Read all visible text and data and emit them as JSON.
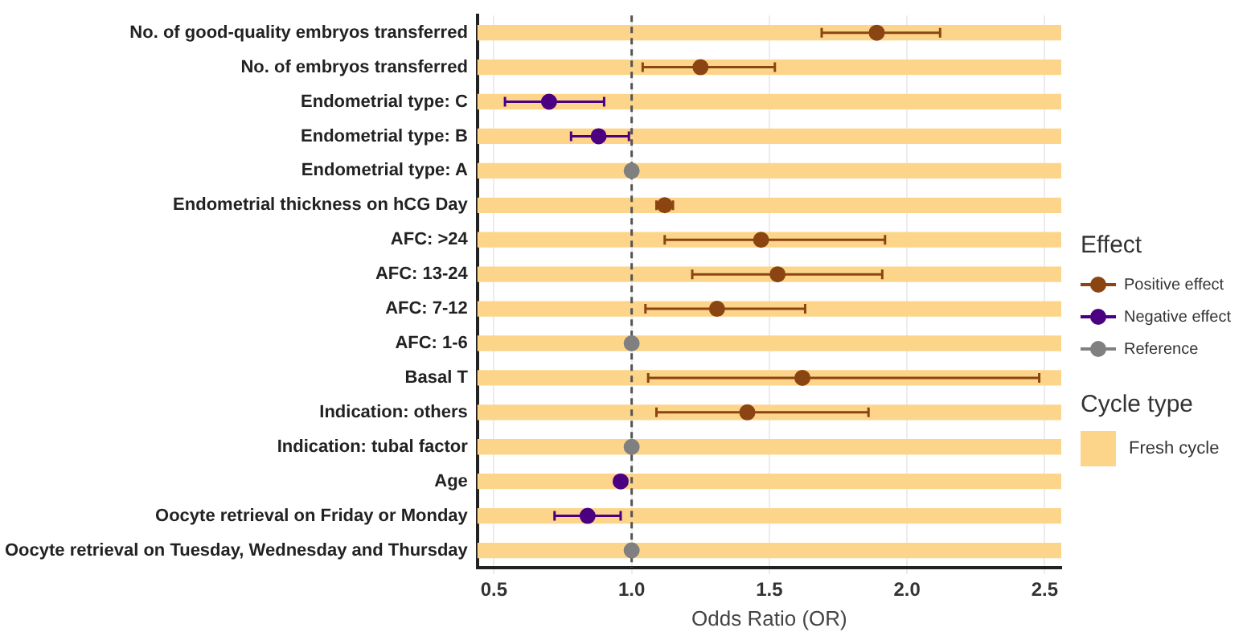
{
  "chart_data": {
    "type": "scatter",
    "orientation": "horizontal",
    "xlabel": "Odds Ratio (OR)",
    "legend": "right",
    "legend_title": "Effect",
    "marker": "circle",
    "grid": "x",
    "categories": [
      "No. of good-quality embryos transferred",
      "No. of embryos transferred",
      "Endometrial type: C",
      "Endometrial type: B",
      "Endometrial type: A",
      "Endometrial thickness on hCG Day",
      "AFC: >24",
      "AFC: 13-24",
      "AFC: 7-12",
      "AFC: 1-6",
      "Basal T",
      "Indication: others",
      "Indication: tubal factor",
      "Age",
      "Oocyte retrieval on Friday or Monday",
      "Oocyte retrieval on Tuesday, Wednesday and Thursday"
    ],
    "xlim": [
      0.44,
      2.56
    ],
    "xticks": [
      0.5,
      {
        "value": 1,
        "label": "1.0"
      },
      1.5,
      {
        "value": 2,
        "label": "2.0"
      },
      2.5
    ],
    "series": [
      {
        "name": "Positive effect",
        "color": "#8b4513",
        "values": [
          1.89,
          1.25,
          null,
          null,
          null,
          1.12,
          1.47,
          1.53,
          1.31,
          null,
          1.62,
          1.42,
          null,
          null,
          null,
          null
        ],
        "errors": [
          [
            1.69,
            2.12
          ],
          [
            1.04,
            1.52
          ],
          null,
          null,
          null,
          [
            1.09,
            1.15
          ],
          [
            1.12,
            1.92
          ],
          [
            1.22,
            1.91
          ],
          [
            1.05,
            1.63
          ],
          null,
          [
            1.06,
            2.48
          ],
          [
            1.09,
            1.86
          ],
          null,
          null,
          null,
          null
        ]
      },
      {
        "name": "Negative effect",
        "color": "#4b0082",
        "values": [
          null,
          null,
          0.7,
          0.88,
          null,
          null,
          null,
          null,
          null,
          null,
          null,
          null,
          null,
          0.96,
          0.84,
          null
        ],
        "errors": [
          null,
          null,
          [
            0.54,
            0.9
          ],
          [
            0.78,
            0.99
          ],
          null,
          null,
          null,
          null,
          null,
          null,
          null,
          null,
          null,
          [
            0.95,
            0.97
          ],
          [
            0.72,
            0.96
          ],
          null
        ]
      },
      {
        "name": "Reference",
        "color": "#808080",
        "values": [
          null,
          null,
          null,
          null,
          1,
          null,
          null,
          null,
          null,
          1,
          null,
          null,
          1,
          null,
          null,
          1
        ]
      }
    ],
    "bands": [
      {
        "axis": "y",
        "from": "No. of good-quality embryos transferred",
        "to": "No. of good-quality embryos transferred",
        "label": "Fresh cycle",
        "color": "#fdd58a"
      },
      {
        "axis": "y",
        "from": "No. of embryos transferred",
        "to": "No. of embryos transferred",
        "color": "#fdd58a"
      },
      {
        "axis": "y",
        "from": "Endometrial type: C",
        "to": "Endometrial type: C",
        "color": "#fdd58a"
      },
      {
        "axis": "y",
        "from": "Endometrial type: B",
        "to": "Endometrial type: B",
        "color": "#fdd58a"
      },
      {
        "axis": "y",
        "from": "Endometrial type: A",
        "to": "Endometrial type: A",
        "color": "#fdd58a"
      },
      {
        "axis": "y",
        "from": "Endometrial thickness on hCG Day",
        "to": "Endometrial thickness on hCG Day",
        "color": "#fdd58a"
      },
      {
        "axis": "y",
        "from": "AFC: >24",
        "to": "AFC: >24",
        "color": "#fdd58a"
      },
      {
        "axis": "y",
        "from": "AFC: 13-24",
        "to": "AFC: 13-24",
        "color": "#fdd58a"
      },
      {
        "axis": "y",
        "from": "AFC: 7-12",
        "to": "AFC: 7-12",
        "color": "#fdd58a"
      },
      {
        "axis": "y",
        "from": "AFC: 1-6",
        "to": "AFC: 1-6",
        "color": "#fdd58a"
      },
      {
        "axis": "y",
        "from": "Basal T",
        "to": "Basal T",
        "color": "#fdd58a"
      },
      {
        "axis": "y",
        "from": "Indication: others",
        "to": "Indication: others",
        "color": "#fdd58a"
      },
      {
        "axis": "y",
        "from": "Indication: tubal factor",
        "to": "Indication: tubal factor",
        "color": "#fdd58a"
      },
      {
        "axis": "y",
        "from": "Age",
        "to": "Age",
        "color": "#fdd58a"
      },
      {
        "axis": "y",
        "from": "Oocyte retrieval on Friday or Monday",
        "to": "Oocyte retrieval on Friday or Monday",
        "color": "#fdd58a"
      },
      {
        "axis": "y",
        "from": "Oocyte retrieval on Tuesday, Wednesday and Thursday",
        "to": "Oocyte retrieval on Tuesday, Wednesday and Thursday",
        "color": "#fdd58a"
      }
    ],
    "ref_lines": [
      {
        "axis": "x",
        "value": 1,
        "line_style": "dashed",
        "color": "#555555"
      }
    ],
    "annotations": [
      "Cycle type"
    ]
  }
}
